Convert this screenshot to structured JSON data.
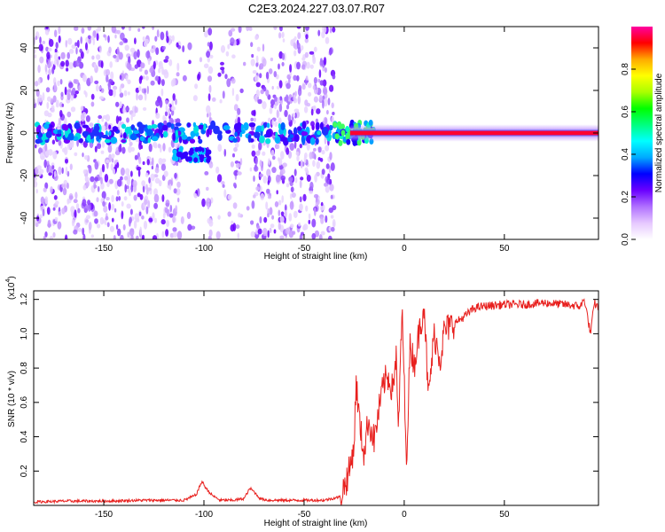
{
  "figure": {
    "title": "C2E3.2024.227.03.07.R07"
  },
  "chart_data": [
    {
      "type": "heatmap",
      "xlabel": "Height of straight line (km)",
      "ylabel": "Frequency (Hz)",
      "xlim": [
        -185,
        97
      ],
      "ylim": [
        -50,
        50
      ],
      "x_ticks": [
        -150,
        -100,
        -50,
        0,
        50
      ],
      "y_ticks": [
        -40,
        -20,
        0,
        20,
        40
      ],
      "colorbar": {
        "label": "Normalized spectral amplitude",
        "range": [
          0,
          1
        ],
        "ticks": [
          "0.0",
          "0.2",
          "0.4",
          "0.6",
          "0.8"
        ],
        "tick_values": [
          0,
          0.2,
          0.4,
          0.6,
          0.8
        ],
        "colors": [
          "#ffffff",
          "#e6c8ff",
          "#b070ff",
          "#6a00ff",
          "#0000ff",
          "#00aaff",
          "#00ffff",
          "#00ff80",
          "#00ff00",
          "#aaff00",
          "#ffff00",
          "#ffaa00",
          "#ff0000",
          "#ff00a0"
        ]
      },
      "carrier_band": {
        "frequency_center": 0,
        "strong_start_km": -35,
        "strong_end_km": 97
      }
    },
    {
      "type": "line",
      "xlabel": "Height of straight line (km)",
      "ylabel": "SNR (10 * v/v)",
      "y_multiplier": "(x10",
      "y_multiplier_exp": "4",
      "xlim": [
        -185,
        97
      ],
      "ylim": [
        0,
        1.25
      ],
      "x_ticks": [
        -150,
        -100,
        -50,
        0,
        50
      ],
      "y_ticks": [
        "0.2",
        "0.4",
        "0.6",
        "0.8",
        "1.0",
        "1.2"
      ],
      "y_tick_values": [
        0.2,
        0.4,
        0.6,
        0.8,
        1.0,
        1.2
      ],
      "series": [
        {
          "color": "#e8201e",
          "x": [
            -185,
            -170,
            -150,
            -130,
            -110,
            -104,
            -101,
            -99,
            -96,
            -92,
            -85,
            -80,
            -77,
            -75,
            -72,
            -68,
            -60,
            -50,
            -40,
            -32,
            -29,
            -27,
            -25,
            -24,
            -22,
            -20,
            -18,
            -15,
            -12,
            -10,
            -8,
            -6,
            -4,
            -3,
            -1,
            0,
            1,
            3,
            5,
            8,
            10,
            12,
            15,
            18,
            20,
            25,
            30,
            35,
            40,
            50,
            60,
            70,
            80,
            88,
            90,
            93,
            95,
            97
          ],
          "y": [
            0.02,
            0.025,
            0.025,
            0.03,
            0.03,
            0.06,
            0.14,
            0.1,
            0.06,
            0.03,
            0.03,
            0.04,
            0.1,
            0.08,
            0.04,
            0.03,
            0.03,
            0.03,
            0.03,
            0.05,
            0.14,
            0.22,
            0.36,
            0.72,
            0.45,
            0.3,
            0.5,
            0.38,
            0.6,
            0.72,
            0.75,
            0.68,
            0.86,
            0.42,
            1.14,
            0.72,
            0.22,
            0.95,
            0.82,
            1.05,
            1.18,
            0.62,
            1.0,
            0.85,
            1.02,
            1.06,
            1.1,
            1.15,
            1.16,
            1.17,
            1.17,
            1.18,
            1.17,
            1.16,
            1.2,
            1.0,
            1.18,
            1.15
          ]
        }
      ]
    }
  ]
}
